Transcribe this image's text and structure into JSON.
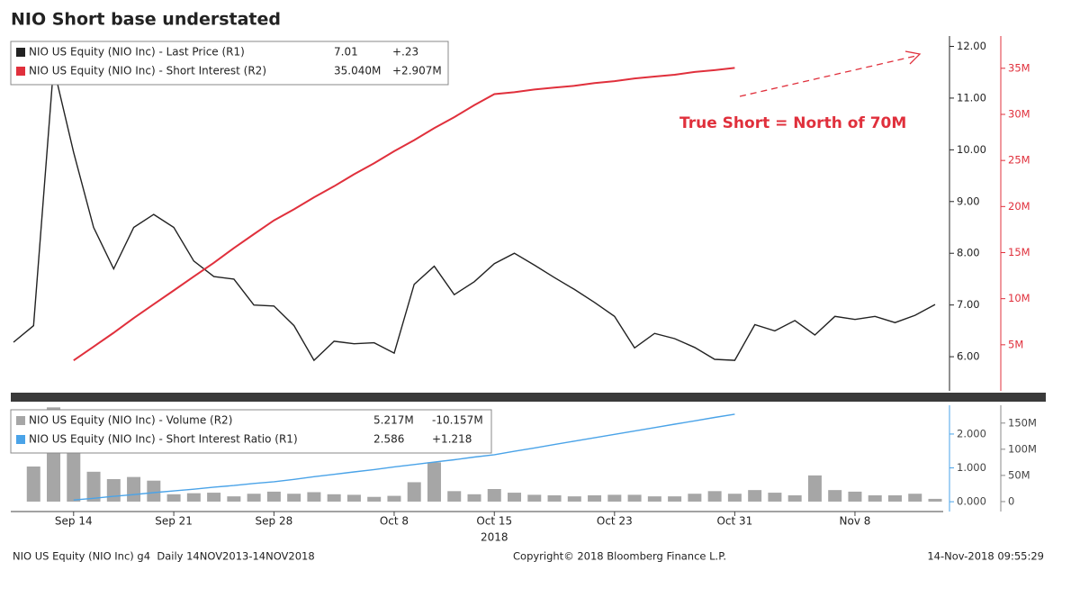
{
  "title": "NIO Short base understated",
  "chart_data": [
    {
      "type": "line",
      "annotation": "True Short = North of 70M",
      "ylim": [
        5.34,
        12.2
      ],
      "yticks": [
        {
          "value": 6,
          "label": "6.00"
        },
        {
          "value": 7,
          "label": "7.00"
        },
        {
          "value": 8,
          "label": "8.00"
        },
        {
          "value": 9,
          "label": "9.00"
        },
        {
          "value": 10,
          "label": "10.00"
        },
        {
          "value": 11,
          "label": "11.00"
        },
        {
          "value": 12,
          "label": "12.00"
        }
      ],
      "y2lim": [
        0,
        38.5
      ],
      "y2ticks": [
        {
          "value": 5,
          "label": "5M"
        },
        {
          "value": 10,
          "label": "10M"
        },
        {
          "value": 15,
          "label": "15M"
        },
        {
          "value": 20,
          "label": "20M"
        },
        {
          "value": 25,
          "label": "25M"
        },
        {
          "value": 30,
          "label": "30M"
        },
        {
          "value": 35,
          "label": "35M"
        }
      ],
      "series": [
        {
          "name": "NIO US Equity (NIO Inc) - Last Price (R1)",
          "last": "7.01",
          "change": "+.23",
          "color": "#222222",
          "axis": "y",
          "type": "line",
          "values": [
            6.28,
            6.6,
            11.6,
            9.95,
            8.5,
            7.7,
            8.5,
            8.75,
            8.5,
            7.85,
            7.55,
            7.5,
            7.0,
            6.98,
            6.6,
            5.93,
            6.3,
            6.25,
            6.27,
            6.07,
            7.4,
            7.75,
            7.2,
            7.45,
            7.8,
            8.0,
            7.77,
            7.53,
            7.3,
            7.05,
            6.78,
            6.17,
            6.45,
            6.35,
            6.18,
            5.95,
            5.93,
            6.62,
            6.5,
            6.7,
            6.42,
            6.78,
            6.72,
            6.78,
            6.66,
            6.8,
            7.01
          ]
        },
        {
          "name": "NIO US Equity (NIO Inc) - Short Interest (R2)",
          "last": "35.040M",
          "change": "+2.907M",
          "color": "#e0303c",
          "axis": "y2",
          "type": "line",
          "values": [
            null,
            null,
            null,
            3.3,
            4.8,
            6.3,
            7.9,
            9.4,
            10.9,
            12.4,
            13.9,
            15.5,
            17.0,
            18.5,
            19.7,
            21.0,
            22.2,
            23.5,
            24.7,
            26.0,
            27.2,
            28.5,
            29.7,
            31.0,
            32.2,
            32.4,
            32.7,
            32.9,
            33.1,
            33.4,
            33.6,
            33.9,
            34.1,
            34.3,
            34.6,
            34.8,
            35.04,
            null,
            null,
            null,
            null,
            null,
            null,
            null,
            null,
            null,
            null
          ]
        }
      ]
    },
    {
      "type": "combo",
      "categories": [
        null,
        null,
        null,
        "Sep 14",
        null,
        null,
        null,
        null,
        "Sep 21",
        null,
        null,
        null,
        null,
        "Sep 28",
        null,
        null,
        null,
        null,
        null,
        "Oct 8",
        null,
        null,
        null,
        null,
        "Oct 15",
        null,
        null,
        null,
        null,
        null,
        "Oct 23",
        null,
        null,
        null,
        null,
        null,
        "Oct 31",
        null,
        null,
        null,
        null,
        null,
        "Nov 8",
        null,
        null,
        null,
        null
      ],
      "year_label": "2018",
      "ylim": [
        -0.29,
        2.85
      ],
      "yticks": [
        {
          "value": 0,
          "label": "0.000"
        },
        {
          "value": 1,
          "label": "1.000"
        },
        {
          "value": 2,
          "label": "2.000"
        }
      ],
      "y2lim": [
        -19,
        184
      ],
      "y2ticks": [
        0,
        {
          "value": 50,
          "label": "50M"
        },
        {
          "value": 100,
          "label": "100M"
        },
        {
          "value": 150,
          "label": "150M"
        }
      ],
      "series": [
        {
          "name": "NIO US Equity (NIO Inc) - Volume (R2)",
          "last": "5.217M",
          "change": "-10.157M",
          "color": "#a6a6a6",
          "axis": "y2",
          "type": "bar",
          "values": [
            null,
            67,
            180,
            170,
            57,
            43,
            47,
            40,
            14,
            16,
            17,
            10,
            15,
            19,
            15,
            18,
            14,
            13,
            9,
            11,
            37,
            75,
            20,
            14,
            24,
            17,
            13,
            12,
            10,
            12,
            13,
            13,
            10,
            10,
            15,
            20,
            15,
            22,
            17,
            12,
            50,
            22,
            19,
            12,
            12,
            15,
            5.217
          ]
        },
        {
          "name": "NIO US Equity (NIO Inc) - Short Interest Ratio (R1)",
          "last": "2.586",
          "change": "+1.218",
          "color": "#4aa3e8",
          "axis": "y",
          "type": "line",
          "values": [
            null,
            null,
            null,
            0.05,
            0.1,
            0.16,
            0.21,
            0.27,
            0.32,
            0.37,
            0.43,
            0.48,
            0.54,
            0.59,
            0.66,
            0.74,
            0.81,
            0.88,
            0.95,
            1.03,
            1.1,
            1.17,
            1.24,
            1.32,
            1.39,
            1.49,
            1.59,
            1.69,
            1.79,
            1.89,
            1.99,
            2.09,
            2.19,
            2.29,
            2.39,
            2.49,
            2.586,
            null,
            null,
            null,
            null,
            null,
            null,
            null,
            null,
            null,
            null
          ]
        }
      ]
    }
  ],
  "footer": {
    "left": "NIO US Equity (NIO Inc) g4  Daily 14NOV2013-14NOV2018",
    "center": "Copyright© 2018 Bloomberg Finance L.P.",
    "right": "14-Nov-2018 09:55:29"
  }
}
